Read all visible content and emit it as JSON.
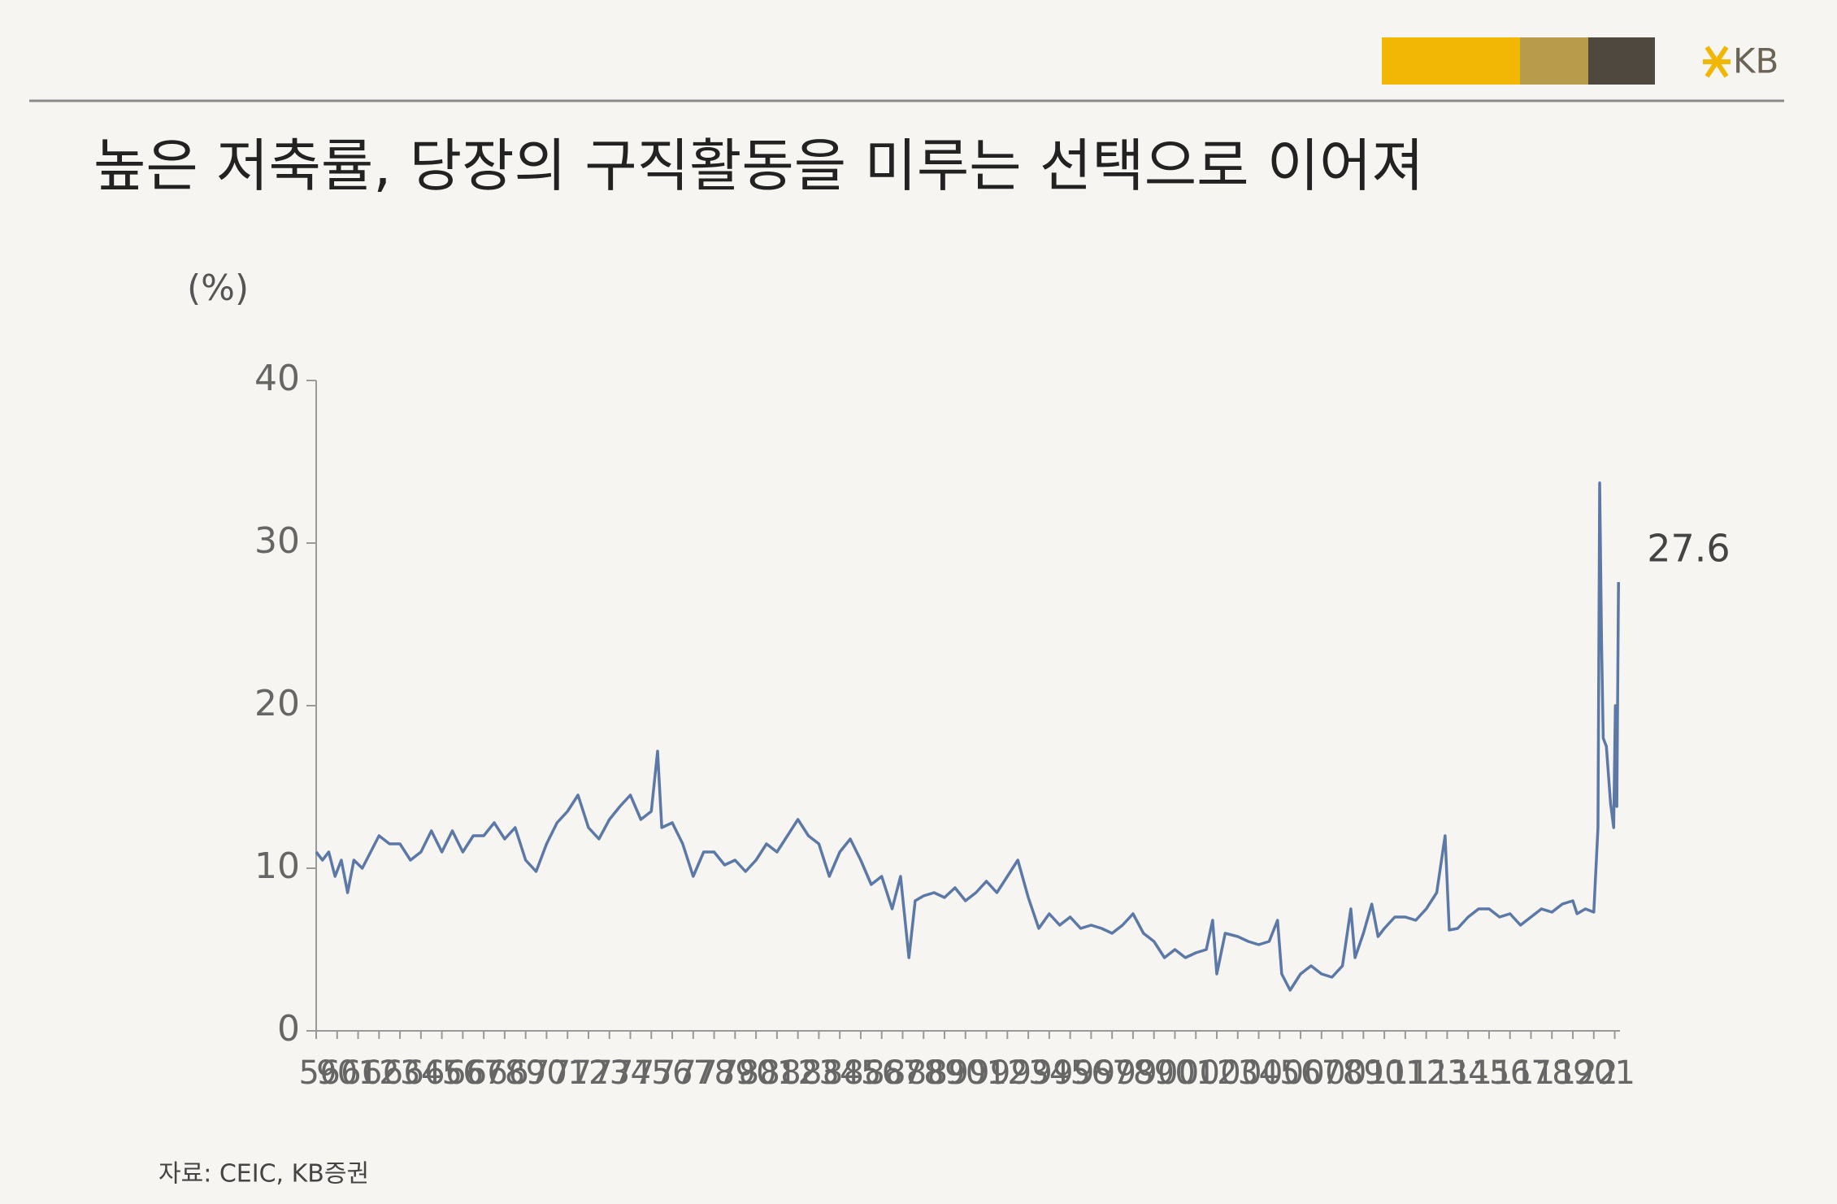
{
  "header": {
    "title": "높은 저축률, 당장의 구직활동을 미루는 선택으로 이어져",
    "logo": "KB"
  },
  "chart_data": {
    "type": "line",
    "y_unit": "(%)",
    "x": [
      1959.0,
      1959.3,
      1959.6,
      1959.9,
      1960.2,
      1960.5,
      1960.8,
      1961.2,
      1961.6,
      1962.0,
      1962.5,
      1963.0,
      1963.5,
      1964.0,
      1964.5,
      1965.0,
      1965.5,
      1966.0,
      1966.5,
      1967.0,
      1967.5,
      1968.0,
      1968.5,
      1969.0,
      1969.5,
      1970.0,
      1970.5,
      1971.0,
      1971.5,
      1972.0,
      1972.5,
      1973.0,
      1973.5,
      1974.0,
      1974.5,
      1975.0,
      1975.3,
      1975.5,
      1976.0,
      1976.5,
      1977.0,
      1977.5,
      1978.0,
      1978.5,
      1979.0,
      1979.5,
      1980.0,
      1980.5,
      1981.0,
      1981.5,
      1982.0,
      1982.5,
      1983.0,
      1983.5,
      1984.0,
      1984.5,
      1985.0,
      1985.5,
      1986.0,
      1986.5,
      1986.9,
      1987.3,
      1987.6,
      1988.0,
      1988.5,
      1989.0,
      1989.5,
      1990.0,
      1990.5,
      1991.0,
      1991.5,
      1992.0,
      1992.5,
      1993.0,
      1993.5,
      1994.0,
      1994.5,
      1995.0,
      1995.5,
      1996.0,
      1996.5,
      1997.0,
      1997.5,
      1998.0,
      1998.5,
      1999.0,
      1999.5,
      2000.0,
      2000.5,
      2001.0,
      2001.5,
      2001.8,
      2002.0,
      2002.4,
      2003.0,
      2003.5,
      2004.0,
      2004.5,
      2004.9,
      2005.1,
      2005.5,
      2006.0,
      2006.5,
      2007.0,
      2007.5,
      2008.0,
      2008.4,
      2008.6,
      2009.0,
      2009.4,
      2009.7,
      2010.0,
      2010.5,
      2011.0,
      2011.5,
      2012.0,
      2012.5,
      2012.9,
      2013.1,
      2013.5,
      2014.0,
      2014.5,
      2015.0,
      2015.5,
      2016.0,
      2016.5,
      2017.0,
      2017.5,
      2018.0,
      2018.5,
      2019.0,
      2019.2,
      2019.6,
      2020.0,
      2020.2,
      2020.28,
      2020.37,
      2020.45,
      2020.6,
      2020.8,
      2020.95,
      2021.03,
      2021.1,
      2021.18
    ],
    "series": [
      {
        "color": "#5b78a6",
        "values": [
          11,
          10.5,
          11,
          9.5,
          10.5,
          8.5,
          10.5,
          10,
          11,
          12,
          11.5,
          11.5,
          10.5,
          11,
          12.3,
          11,
          12.3,
          11,
          12,
          12,
          12.8,
          11.8,
          12.5,
          10.5,
          9.8,
          11.5,
          12.8,
          13.5,
          14.5,
          12.5,
          11.8,
          13,
          13.8,
          14.5,
          13,
          13.5,
          17.2,
          12.5,
          12.8,
          11.5,
          9.5,
          11,
          11,
          10.2,
          10.5,
          9.8,
          10.5,
          11.5,
          11,
          12,
          13,
          12,
          11.5,
          9.5,
          11,
          11.8,
          10.5,
          9,
          9.5,
          7.5,
          9.5,
          4.5,
          8,
          8.3,
          8.5,
          8.2,
          8.8,
          8,
          8.5,
          9.2,
          8.5,
          9.5,
          10.5,
          8.2,
          6.3,
          7.2,
          6.5,
          7,
          6.3,
          6.5,
          6.3,
          6,
          6.5,
          7.2,
          6,
          5.5,
          4.5,
          5,
          4.5,
          4.8,
          5,
          6.8,
          3.5,
          6,
          5.8,
          5.5,
          5.3,
          5.5,
          6.8,
          3.5,
          2.5,
          3.5,
          4,
          3.5,
          3.3,
          4,
          7.5,
          4.5,
          6,
          7.8,
          5.8,
          6.3,
          7,
          7,
          6.8,
          7.5,
          8.5,
          12,
          6.2,
          6.3,
          7,
          7.5,
          7.5,
          7,
          7.2,
          6.5,
          7,
          7.5,
          7.3,
          7.8,
          8,
          7.2,
          7.5,
          7.3,
          12.5,
          33.7,
          24,
          18,
          17.5,
          14,
          12.5,
          20,
          13.8,
          27.6
        ]
      }
    ],
    "xlim": [
      1959,
      2021.25
    ],
    "xticks": [
      {
        "value": 1959,
        "label": "59"
      },
      {
        "value": 1960,
        "label": "60"
      },
      {
        "value": 1961,
        "label": "61"
      },
      {
        "value": 1962,
        "label": "62"
      },
      {
        "value": 1963,
        "label": "63"
      },
      {
        "value": 1964,
        "label": "64"
      },
      {
        "value": 1965,
        "label": "65"
      },
      {
        "value": 1966,
        "label": "66"
      },
      {
        "value": 1967,
        "label": "67"
      },
      {
        "value": 1968,
        "label": "68"
      },
      {
        "value": 1969,
        "label": "69"
      },
      {
        "value": 1970,
        "label": "70"
      },
      {
        "value": 1971,
        "label": "71"
      },
      {
        "value": 1972,
        "label": "72"
      },
      {
        "value": 1973,
        "label": "73"
      },
      {
        "value": 1974,
        "label": "74"
      },
      {
        "value": 1975,
        "label": "75"
      },
      {
        "value": 1976,
        "label": "76"
      },
      {
        "value": 1977,
        "label": "77"
      },
      {
        "value": 1978,
        "label": "78"
      },
      {
        "value": 1979,
        "label": "79"
      },
      {
        "value": 1980,
        "label": "80"
      },
      {
        "value": 1981,
        "label": "81"
      },
      {
        "value": 1982,
        "label": "82"
      },
      {
        "value": 1983,
        "label": "83"
      },
      {
        "value": 1984,
        "label": "84"
      },
      {
        "value": 1985,
        "label": "85"
      },
      {
        "value": 1986,
        "label": "86"
      },
      {
        "value": 1987,
        "label": "87"
      },
      {
        "value": 1988,
        "label": "88"
      },
      {
        "value": 1989,
        "label": "89"
      },
      {
        "value": 1990,
        "label": "90"
      },
      {
        "value": 1991,
        "label": "91"
      },
      {
        "value": 1992,
        "label": "92"
      },
      {
        "value": 1993,
        "label": "93"
      },
      {
        "value": 1994,
        "label": "94"
      },
      {
        "value": 1995,
        "label": "95"
      },
      {
        "value": 1996,
        "label": "96"
      },
      {
        "value": 1997,
        "label": "97"
      },
      {
        "value": 1998,
        "label": "98"
      },
      {
        "value": 1999,
        "label": "99"
      },
      {
        "value": 2000,
        "label": "00"
      },
      {
        "value": 2001,
        "label": "01"
      },
      {
        "value": 2002,
        "label": "02"
      },
      {
        "value": 2003,
        "label": "03"
      },
      {
        "value": 2004,
        "label": "04"
      },
      {
        "value": 2005,
        "label": "05"
      },
      {
        "value": 2006,
        "label": "06"
      },
      {
        "value": 2007,
        "label": "07"
      },
      {
        "value": 2008,
        "label": "08"
      },
      {
        "value": 2009,
        "label": "09"
      },
      {
        "value": 2010,
        "label": "10"
      },
      {
        "value": 2011,
        "label": "11"
      },
      {
        "value": 2012,
        "label": "12"
      },
      {
        "value": 2013,
        "label": "13"
      },
      {
        "value": 2014,
        "label": "14"
      },
      {
        "value": 2015,
        "label": "15"
      },
      {
        "value": 2016,
        "label": "16"
      },
      {
        "value": 2017,
        "label": "17"
      },
      {
        "value": 2018,
        "label": "18"
      },
      {
        "value": 2019,
        "label": "19"
      },
      {
        "value": 2020,
        "label": "20"
      },
      {
        "value": 2021,
        "label": "21"
      }
    ],
    "ylim": [
      0,
      40
    ],
    "yticks": [
      0,
      10,
      20,
      30,
      40
    ],
    "grid": false
  },
  "footer": {
    "source": "자료: CEIC, KB증권"
  }
}
